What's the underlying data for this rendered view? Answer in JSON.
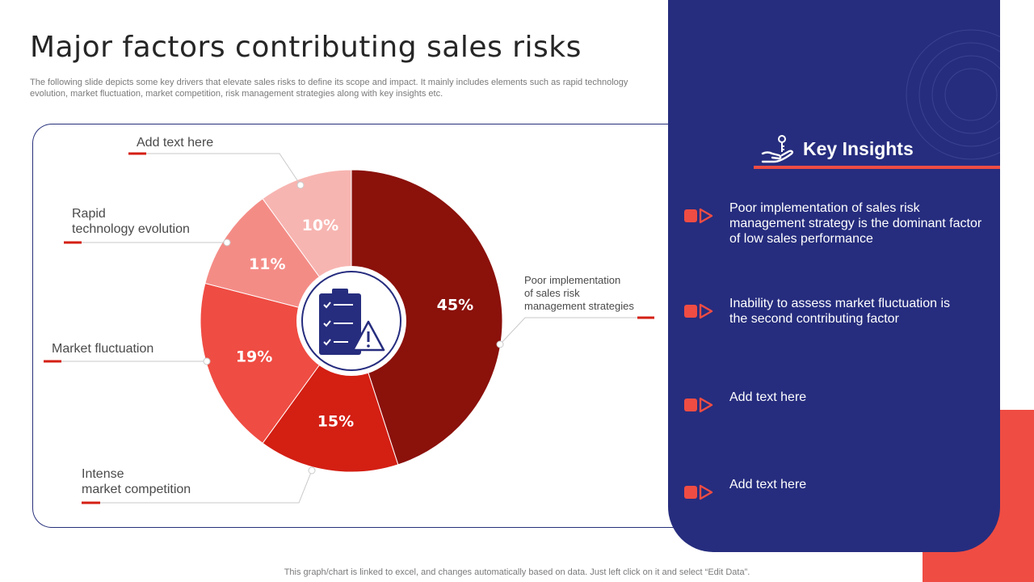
{
  "slide": {
    "title": "Major factors contributing sales risks",
    "subtitle": "The following slide depicts some key drivers that elevate sales risks to define its scope and impact. It mainly includes elements such as rapid technology evolution, market fluctuation, market competition, risk management strategies along with key insights etc.",
    "footer": "This graph/chart is linked to excel,  and changes automatically based on data. Just left click on it and select “Edit Data”."
  },
  "chart_data": {
    "type": "pie",
    "categories": [
      "Poor implementation\nof sales risk\nmanagement  strategies",
      "Intense\nmarket competition",
      "Market fluctuation",
      "Rapid\ntechnology  evolution",
      "Add text here"
    ],
    "values": [
      45,
      15,
      19,
      11,
      10
    ],
    "value_labels": [
      "45%",
      "15%",
      "19%",
      "11%",
      "10%"
    ],
    "colors": [
      "#8b110b",
      "#d41f13",
      "#ef4c43",
      "#f48c86",
      "#f7b5b1"
    ],
    "center_icon": "clipboard-warning-icon",
    "legend": "callouts"
  },
  "insights": {
    "heading": "Key Insights",
    "heading_icon": "hand-key-icon",
    "items": [
      {
        "text": "Poor implementation  of sales risk\nmanagement strategy  is the dominant factor\nof low sales performance"
      },
      {
        "text": "Inability  to assess market fluctuation  is\nthe second contributing factor"
      },
      {
        "text": "Add text here"
      },
      {
        "text": "Add text here"
      }
    ]
  },
  "colors": {
    "accent_red": "#ef4c43",
    "panel_blue": "#262d7e",
    "dark_red": "#8b110b"
  }
}
